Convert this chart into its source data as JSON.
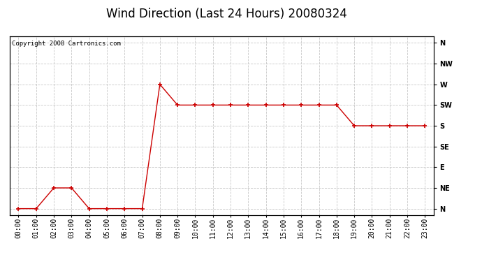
{
  "title": "Wind Direction (Last 24 Hours) 20080324",
  "copyright": "Copyright 2008 Cartronics.com",
  "x_labels": [
    "00:00",
    "01:00",
    "02:00",
    "03:00",
    "04:00",
    "05:00",
    "06:00",
    "07:00",
    "08:00",
    "09:00",
    "10:00",
    "11:00",
    "12:00",
    "13:00",
    "14:00",
    "15:00",
    "16:00",
    "17:00",
    "18:00",
    "19:00",
    "20:00",
    "21:00",
    "22:00",
    "23:00"
  ],
  "y_labels": [
    "N",
    "NE",
    "E",
    "SE",
    "S",
    "SW",
    "W",
    "NW",
    "N"
  ],
  "data": [
    0,
    0,
    1,
    1,
    0,
    0,
    0,
    0,
    6,
    5,
    5,
    5,
    5,
    5,
    5,
    5,
    5,
    5,
    5,
    4,
    4,
    4,
    4,
    4
  ],
  "line_color": "#cc0000",
  "marker": "+",
  "marker_size": 5,
  "marker_color": "#cc0000",
  "grid_color": "#c8c8c8",
  "bg_color": "#ffffff",
  "outer_bg": "#ffffff",
  "title_fontsize": 12,
  "tick_fontsize": 7,
  "copyright_fontsize": 6.5
}
